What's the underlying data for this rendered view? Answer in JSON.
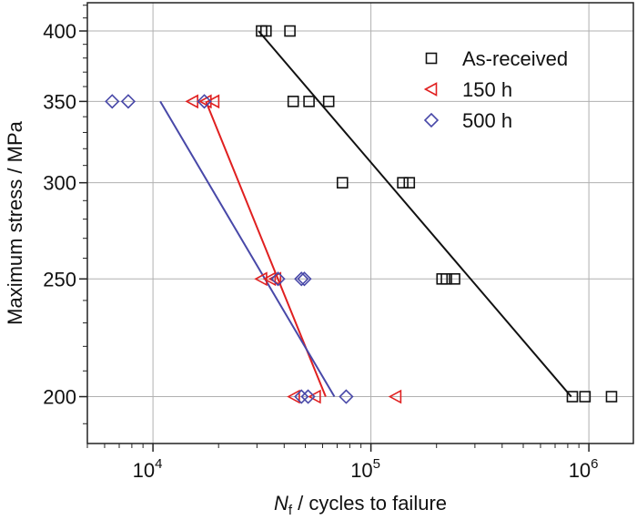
{
  "chart_data": {
    "type": "scatter",
    "title": "",
    "xlabel_main": "N",
    "xlabel_sub": "f",
    "xlabel_rest": " / cycles to failure",
    "ylabel": "Maximum stress / MPa",
    "xscale": "log",
    "yscale": "log",
    "xlim": [
      5000,
      1600000
    ],
    "ylim": [
      183,
      422
    ],
    "grid": true,
    "legend_position": "top-right",
    "x_ticks": [
      {
        "value": 10000,
        "base": "10",
        "exp": "4"
      },
      {
        "value": 100000,
        "base": "10",
        "exp": "5"
      },
      {
        "value": 1000000,
        "base": "10",
        "exp": "6"
      }
    ],
    "y_ticks": [
      {
        "value": 200,
        "label": "200"
      },
      {
        "value": 250,
        "label": "250"
      },
      {
        "value": 300,
        "label": "300"
      },
      {
        "value": 350,
        "label": "350"
      },
      {
        "value": 400,
        "label": "400"
      }
    ],
    "series": [
      {
        "name": "As-received",
        "marker": "square",
        "color": "#111111",
        "points": [
          {
            "x": 31500,
            "y": 400
          },
          {
            "x": 33000,
            "y": 400
          },
          {
            "x": 42500,
            "y": 400
          },
          {
            "x": 44000,
            "y": 350
          },
          {
            "x": 52000,
            "y": 350
          },
          {
            "x": 64000,
            "y": 350
          },
          {
            "x": 74000,
            "y": 300
          },
          {
            "x": 140000,
            "y": 300
          },
          {
            "x": 150000,
            "y": 300
          },
          {
            "x": 212000,
            "y": 250
          },
          {
            "x": 222000,
            "y": 250
          },
          {
            "x": 242000,
            "y": 250
          },
          {
            "x": 840000,
            "y": 200
          },
          {
            "x": 960000,
            "y": 200
          },
          {
            "x": 1270000,
            "y": 200
          }
        ],
        "fit": [
          {
            "x": 30500,
            "y": 400
          },
          {
            "x": 830000,
            "y": 200
          }
        ]
      },
      {
        "name": "150 h",
        "marker": "triangle-left",
        "color": "#e02020",
        "points": [
          {
            "x": 15200,
            "y": 350
          },
          {
            "x": 17500,
            "y": 350
          },
          {
            "x": 19000,
            "y": 350
          },
          {
            "x": 31500,
            "y": 250
          },
          {
            "x": 34500,
            "y": 250
          },
          {
            "x": 36500,
            "y": 250
          },
          {
            "x": 44500,
            "y": 200
          },
          {
            "x": 55500,
            "y": 200
          },
          {
            "x": 130000,
            "y": 200
          }
        ],
        "fit": [
          {
            "x": 17500,
            "y": 350
          },
          {
            "x": 62000,
            "y": 200
          }
        ]
      },
      {
        "name": "500 h",
        "marker": "diamond",
        "color": "#4848a8",
        "points": [
          {
            "x": 6500,
            "y": 350
          },
          {
            "x": 7700,
            "y": 350
          },
          {
            "x": 17200,
            "y": 350
          },
          {
            "x": 37500,
            "y": 250
          },
          {
            "x": 48000,
            "y": 250
          },
          {
            "x": 49500,
            "y": 250
          },
          {
            "x": 48000,
            "y": 200
          },
          {
            "x": 51500,
            "y": 200
          },
          {
            "x": 77000,
            "y": 200
          }
        ],
        "fit": [
          {
            "x": 10800,
            "y": 350
          },
          {
            "x": 68000,
            "y": 200
          }
        ]
      }
    ]
  }
}
